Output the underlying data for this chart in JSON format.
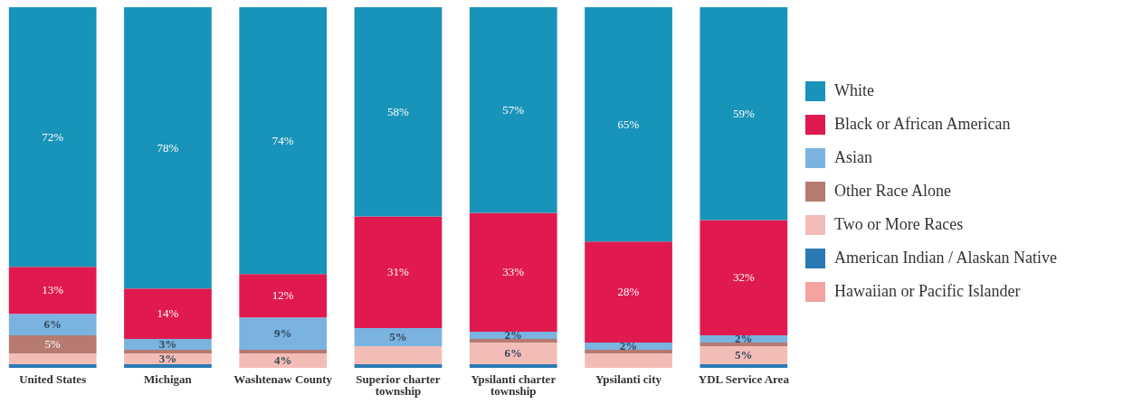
{
  "chart_data": {
    "type": "bar",
    "stacked": true,
    "categories": [
      "United States",
      "Michigan",
      "Washtenaw County",
      "Superior charter township",
      "Ypsilanti charter township",
      "Ypsilanti city",
      "YDL Service Area"
    ],
    "series": [
      {
        "name": "Hawaiian or Pacific Islander",
        "color": "#f4a3a0",
        "values": [
          null,
          null,
          null,
          null,
          null,
          null,
          null
        ]
      },
      {
        "name": "American Indian / Alaskan Native",
        "color": "#2a79b3",
        "values": [
          1,
          1,
          null,
          1,
          1,
          null,
          1
        ]
      },
      {
        "name": "Two or More Races",
        "color": "#f3bdb7",
        "values": [
          3,
          3,
          4,
          5,
          6,
          4,
          5
        ],
        "value_labels": [
          null,
          "3%",
          "4%",
          null,
          "6%",
          null,
          "5%"
        ]
      },
      {
        "name": "Other Race Alone",
        "color": "#b67a70",
        "values": [
          5,
          1,
          1,
          null,
          1,
          1,
          1
        ],
        "value_labels": [
          "5%",
          null,
          null,
          null,
          null,
          null,
          null
        ]
      },
      {
        "name": "Asian",
        "color": "#7ab3e0",
        "values": [
          6,
          3,
          9,
          5,
          2,
          2,
          2
        ],
        "value_labels": [
          "6%",
          "3%",
          "9%",
          "5%",
          "2%",
          "2%",
          "2%"
        ]
      },
      {
        "name": "Black or African American",
        "color": "#e01a4f",
        "values": [
          13,
          14,
          12,
          31,
          33,
          28,
          32
        ],
        "value_labels": [
          "13%",
          "14%",
          "12%",
          "31%",
          "33%",
          "28%",
          "32%"
        ]
      },
      {
        "name": "White",
        "color": "#1893b9",
        "values": [
          72,
          78,
          74,
          58,
          57,
          65,
          59
        ],
        "value_labels": [
          "72%",
          "78%",
          "74%",
          "58%",
          "57%",
          "65%",
          "59%"
        ]
      }
    ],
    "ylim": [
      0,
      100
    ],
    "tick_labels": "x",
    "legend": "right"
  }
}
